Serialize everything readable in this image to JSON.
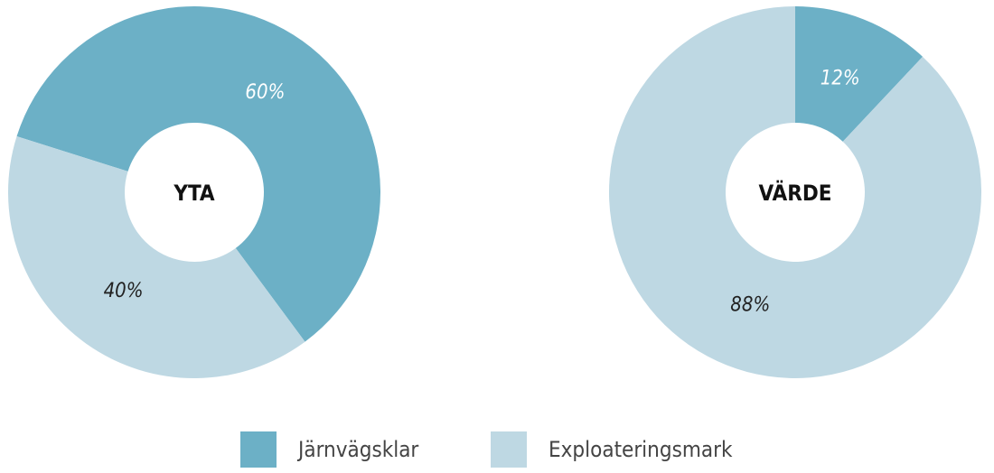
{
  "chart_data": [
    {
      "type": "donut",
      "title": "YTA",
      "values": [
        60,
        40
      ],
      "value_labels": [
        "60%",
        "40%"
      ]
    },
    {
      "type": "donut",
      "title": "VÄRDE",
      "values": [
        12,
        88
      ],
      "value_labels": [
        "12%",
        "88%"
      ]
    }
  ],
  "legend": {
    "labels": [
      "Järnvägsklar",
      "Exploateringsmark"
    ],
    "colors": [
      "#6cb0c6",
      "#bed8e3"
    ]
  }
}
